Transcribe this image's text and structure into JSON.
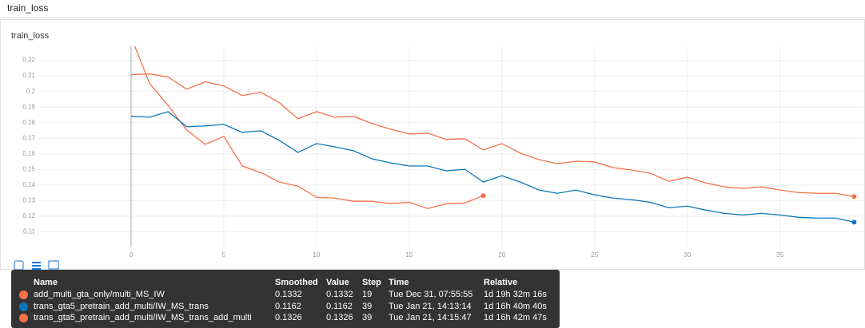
{
  "header": {
    "title": "train_loss"
  },
  "chart_data": {
    "type": "line",
    "title": "train_loss",
    "x": [
      0,
      1,
      2,
      3,
      4,
      5,
      6,
      7,
      8,
      9,
      10,
      11,
      12,
      13,
      14,
      15,
      16,
      17,
      18,
      19,
      20,
      21,
      22,
      23,
      24,
      25,
      26,
      27,
      28,
      29,
      30,
      31,
      32,
      33,
      34,
      35,
      36,
      37,
      38,
      39
    ],
    "series": [
      {
        "name": "add_multi_gta_only/multi_MS_IW",
        "color": "#f4714a",
        "values": [
          0.235,
          0.2051,
          0.191,
          0.1753,
          0.1661,
          0.1712,
          0.1522,
          0.148,
          0.1419,
          0.1393,
          0.1321,
          0.1316,
          0.1296,
          0.1296,
          0.128,
          0.129,
          0.1249,
          0.128,
          0.1285,
          0.1332,
          null,
          null,
          null,
          null,
          null,
          null,
          null,
          null,
          null,
          null,
          null,
          null,
          null,
          null,
          null,
          null,
          null,
          null,
          null,
          null
        ]
      },
      {
        "name": "trans_gta5_pretrain_add_multi/IW_MS_trans",
        "color": "#0b77b8",
        "values": [
          0.1841,
          0.1835,
          0.1871,
          0.1774,
          0.1779,
          0.1789,
          0.1738,
          0.1748,
          0.1686,
          0.1609,
          0.1666,
          0.1645,
          0.162,
          0.1568,
          0.1542,
          0.1522,
          0.1522,
          0.1491,
          0.1501,
          0.1419,
          0.146,
          0.1419,
          0.1368,
          0.1347,
          0.1368,
          0.1337,
          0.1316,
          0.1306,
          0.129,
          0.1254,
          0.1265,
          0.1239,
          0.1218,
          0.1208,
          0.1218,
          0.1208,
          0.1193,
          0.1188,
          0.1188,
          0.1162
        ]
      },
      {
        "name": "trans_gta5_pretrain_add_multi/IW_MS_trans_add_multi",
        "color": "#f4714a",
        "values": [
          0.2108,
          0.2113,
          0.2093,
          0.2015,
          0.2062,
          0.2036,
          0.1974,
          0.1995,
          0.1928,
          0.1825,
          0.1871,
          0.1835,
          0.1841,
          0.1794,
          0.1758,
          0.1728,
          0.1733,
          0.1692,
          0.1697,
          0.1625,
          0.1666,
          0.1604,
          0.1563,
          0.1537,
          0.1553,
          0.1548,
          0.1512,
          0.1496,
          0.1476,
          0.1424,
          0.145,
          0.1414,
          0.1388,
          0.1378,
          0.1388,
          0.1368,
          0.1352,
          0.1347,
          0.1347,
          0.1326
        ]
      }
    ],
    "xlim": [
      -5,
      39.5
    ],
    "xticks": [
      0,
      5,
      10,
      15,
      20,
      25,
      30,
      35
    ],
    "ylim": [
      0.1,
      0.229
    ],
    "yticks": [
      0.11,
      0.12,
      0.13,
      0.14,
      0.15,
      0.16,
      0.17,
      0.18,
      0.19,
      0.2,
      0.21,
      0.22
    ],
    "grid": true
  },
  "tooltip": {
    "columns": [
      "Name",
      "Smoothed",
      "Value",
      "Step",
      "Time",
      "Relative"
    ],
    "rows": [
      [
        "add_multi_gta_only/multi_MS_IW",
        "0.1332",
        "0.1332",
        "19",
        "Tue Dec 31, 07:55:55",
        "1d 19h 32m 16s"
      ],
      [
        "trans_gta5_pretrain_add_multi/IW_MS_trans",
        "0.1162",
        "0.1162",
        "39",
        "Tue Jan 21, 14:13:14",
        "1d 16h 40m 40s"
      ],
      [
        "trans_gta5_pretrain_add_multi/IW_MS_trans_add_multi",
        "0.1326",
        "0.1326",
        "39",
        "Tue Jan 21, 14:15:47",
        "1d 16h 42m 47s"
      ]
    ]
  }
}
